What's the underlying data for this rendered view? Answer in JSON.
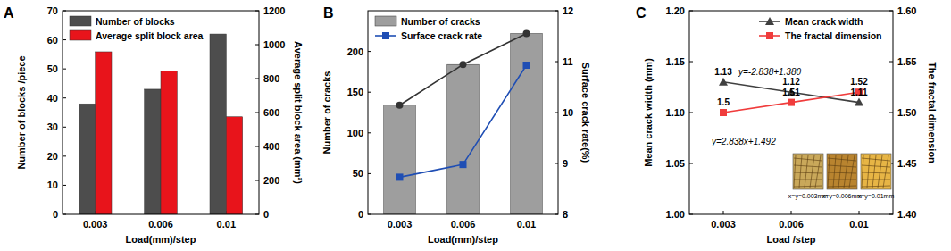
{
  "chart_data": [
    {
      "type": "bar",
      "title": "A",
      "categories": [
        "0.003",
        "0.006",
        "0.01"
      ],
      "x_label": "Load(mm)/step",
      "y_label": "Number of blocks /piece",
      "y2_label": "Average split block area (mm²)",
      "ylim": [
        0,
        70
      ],
      "yticks": [
        0,
        10,
        20,
        30,
        40,
        50,
        60,
        70
      ],
      "y2lim": [
        0,
        1200
      ],
      "y2ticks": [
        0,
        200,
        400,
        600,
        800,
        1000,
        1200
      ],
      "legend": "upper left",
      "series": [
        {
          "name": "Number of blocks",
          "color": "#4d4d4d",
          "values": [
            38,
            43,
            62
          ]
        },
        {
          "name": "Average split block area",
          "color": "#e8141b",
          "values": [
            958,
            845,
            575
          ],
          "axis": "y2"
        }
      ]
    },
    {
      "type": "bar",
      "title": "B",
      "categories": [
        "0.003",
        "0.006",
        "0.01"
      ],
      "x_label": "Load(mm)/step",
      "y_label": "Number of cracks",
      "y2_label": "Surface crack rate(%)",
      "ylim": [
        0,
        250
      ],
      "yticks": [
        0,
        50,
        100,
        150,
        200
      ],
      "y2lim": [
        8,
        12
      ],
      "y2ticks": [
        8,
        9,
        10,
        11,
        12
      ],
      "legend": "upper left",
      "series": [
        {
          "name": "Number of cracks",
          "color": "#9e9e9e",
          "values": [
            134,
            184,
            222
          ]
        },
        {
          "name": "Number of cracks",
          "type": "line",
          "color": "#333333",
          "marker": "circle",
          "line_style": "solid",
          "values": [
            134,
            184,
            222
          ]
        },
        {
          "name": "Surface crack rate",
          "type": "line",
          "color": "#1f4eb4",
          "marker": "square",
          "line_style": "solid",
          "values": [
            8.73,
            8.98,
            10.93
          ],
          "axis": "y2"
        }
      ]
    },
    {
      "type": "line",
      "title": "C",
      "categories": [
        "0.003",
        "0.006",
        "0.01"
      ],
      "x_label": "Load /step",
      "y_label": "Mean crack width (mm)",
      "y2_label": "The fractal dimension",
      "ylim": [
        1.0,
        1.2
      ],
      "yticks": [
        {
          "value": 1.0,
          "label": "1.00"
        },
        1.05,
        {
          "value": 1.1,
          "label": "1.10"
        },
        1.15,
        {
          "value": 1.2,
          "label": "1.20"
        }
      ],
      "y2lim": [
        1.4,
        1.6
      ],
      "y2ticks": [
        {
          "value": 1.4,
          "label": "1.40"
        },
        1.45,
        {
          "value": 1.5,
          "label": "1.50"
        },
        1.55,
        {
          "value": 1.6,
          "label": "1.60"
        }
      ],
      "legend": "upper right",
      "data_labels": true,
      "annotations": [
        "y=-2.838+1.380",
        "y=2.838x+1.492",
        "x=y=0.003mm",
        "x=y=0.006mm",
        "x=y=0.01mm"
      ],
      "series": [
        {
          "name": "Mean crack width",
          "color": "#404040",
          "marker": "triangle",
          "line_style": "solid",
          "values": [
            1.13,
            1.12,
            1.11
          ]
        },
        {
          "name": "The fractal dimension",
          "color": "#f03c3c",
          "marker": "square",
          "line_style": "solid",
          "values": [
            1.5,
            1.51,
            1.52
          ],
          "axis": "y2"
        }
      ]
    }
  ]
}
